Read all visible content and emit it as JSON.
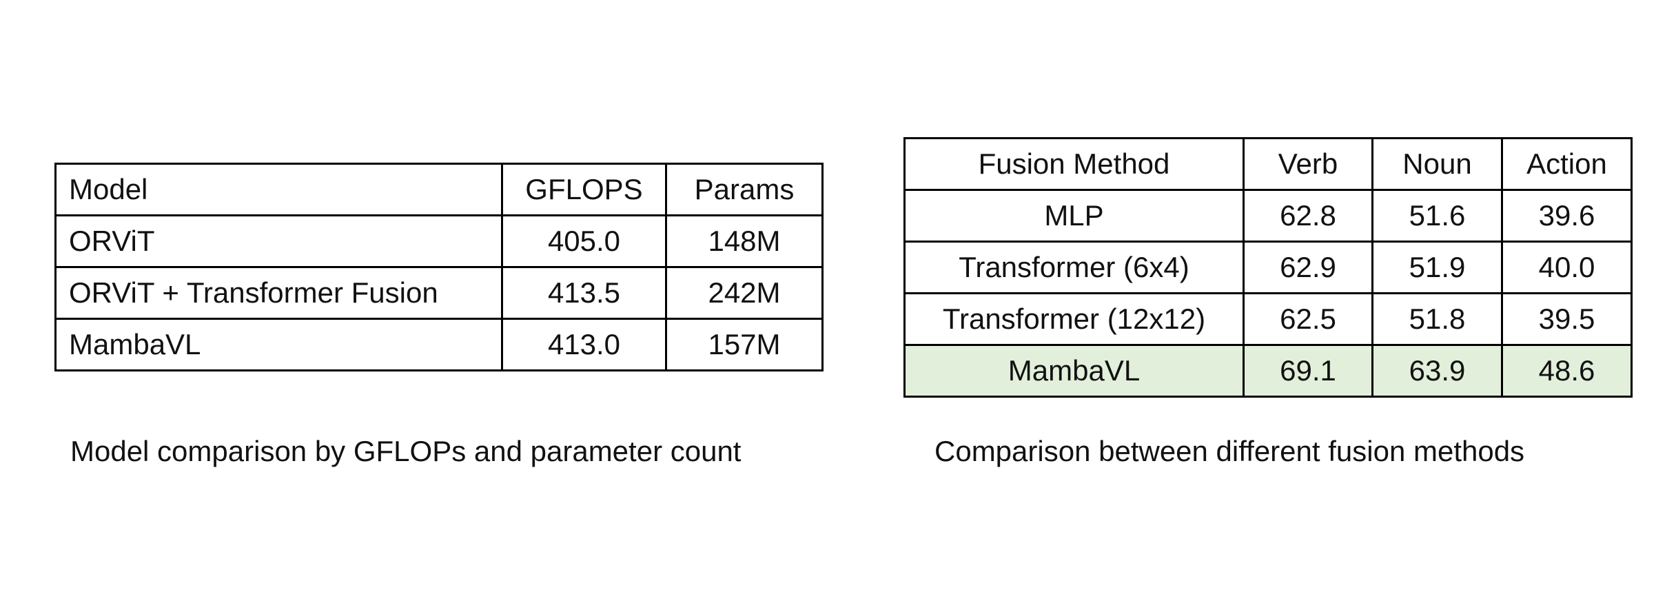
{
  "tables": {
    "left": {
      "headers": [
        "Model",
        "GFLOPS",
        "Params"
      ],
      "rows": [
        [
          "ORViT",
          "405.0",
          "148M"
        ],
        [
          "ORViT + Transformer Fusion",
          "413.5",
          "242M"
        ],
        [
          "MambaVL",
          "413.0",
          "157M"
        ]
      ],
      "caption": "Model comparison by GFLOPs and parameter count"
    },
    "right": {
      "headers": [
        "Fusion Method",
        "Verb",
        "Noun",
        "Action"
      ],
      "rows": [
        [
          "MLP",
          "62.8",
          "51.6",
          "39.6"
        ],
        [
          "Transformer (6x4)",
          "62.9",
          "51.9",
          "40.0"
        ],
        [
          "Transformer (12x12)",
          "62.5",
          "51.8",
          "39.5"
        ],
        [
          "MambaVL",
          "69.1",
          "63.9",
          "48.6"
        ]
      ],
      "highlighted_row": "MambaVL",
      "highlight_color": "#e2efda",
      "caption": "Comparison between different fusion methods"
    }
  }
}
